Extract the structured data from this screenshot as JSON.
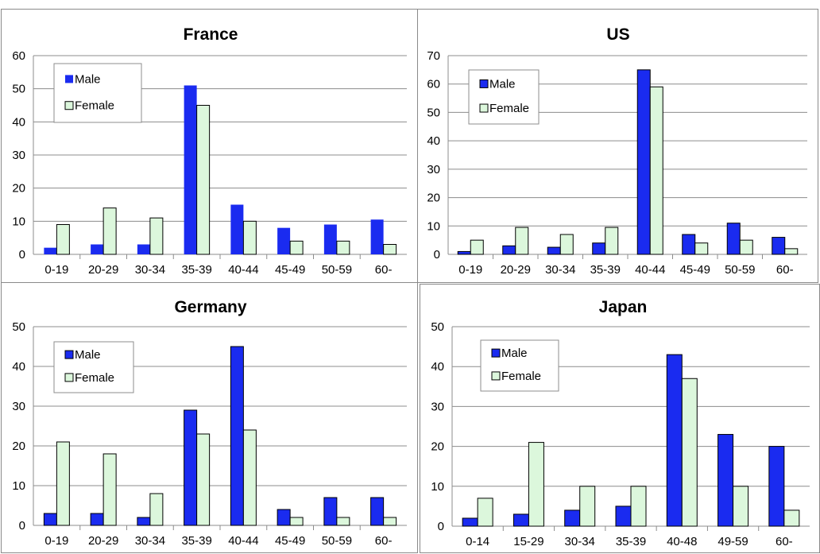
{
  "colors": {
    "male": "#1a2bf0",
    "female": "#dcf7dc",
    "female_stroke": "#000000"
  },
  "chart_data": [
    {
      "type": "bar",
      "title": "France",
      "categories": [
        "0-19",
        "20-29",
        "30-34",
        "35-39",
        "40-44",
        "45-49",
        "50-59",
        "60-"
      ],
      "series": [
        {
          "name": "Male",
          "values": [
            2,
            3,
            3,
            51,
            15,
            8,
            9,
            10.5
          ]
        },
        {
          "name": "Female",
          "values": [
            9,
            14,
            11,
            45,
            10,
            4,
            4,
            3
          ]
        }
      ],
      "ylim": [
        0,
        60
      ],
      "yticks": [
        "0",
        "10",
        "20",
        "30",
        "40",
        "50",
        "60"
      ],
      "grid": true,
      "legend": "top-left"
    },
    {
      "type": "bar",
      "title": "US",
      "categories": [
        "0-19",
        "20-29",
        "30-34",
        "35-39",
        "40-44",
        "45-49",
        "50-59",
        "60-"
      ],
      "series": [
        {
          "name": "Male",
          "values": [
            1,
            3,
            2.5,
            4,
            65,
            7,
            11,
            6
          ]
        },
        {
          "name": "Female",
          "values": [
            5,
            9.5,
            7,
            9.5,
            59,
            4,
            5,
            2
          ]
        }
      ],
      "ylim": [
        0,
        70
      ],
      "yticks": [
        "0",
        "10",
        "20",
        "30",
        "40",
        "50",
        "60",
        "70"
      ],
      "grid": true,
      "legend": "top-left"
    },
    {
      "type": "bar",
      "title": "Germany",
      "categories": [
        "0-19",
        "20-29",
        "30-34",
        "35-39",
        "40-44",
        "45-49",
        "50-59",
        "60-"
      ],
      "series": [
        {
          "name": "Male",
          "values": [
            3,
            3,
            2,
            29,
            45,
            4,
            7,
            7
          ]
        },
        {
          "name": "Female",
          "values": [
            21,
            18,
            8,
            23,
            24,
            2,
            2,
            2
          ]
        }
      ],
      "ylim": [
        0,
        50
      ],
      "yticks": [
        "0",
        "10",
        "20",
        "30",
        "40",
        "50"
      ],
      "grid": true,
      "legend": "top-left"
    },
    {
      "type": "bar",
      "title": "Japan",
      "categories": [
        "0-14",
        "15-29",
        "30-34",
        "35-39",
        "40-48",
        "49-59",
        "60-"
      ],
      "series": [
        {
          "name": "Male",
          "values": [
            2,
            3,
            4,
            5,
            43,
            23,
            20
          ]
        },
        {
          "name": "Female",
          "values": [
            7,
            21,
            10,
            10,
            37,
            10,
            4
          ]
        }
      ],
      "ylim": [
        0,
        50
      ],
      "yticks": [
        "0",
        "10",
        "20",
        "30",
        "40",
        "50"
      ],
      "grid": true,
      "legend": "top-left"
    }
  ]
}
